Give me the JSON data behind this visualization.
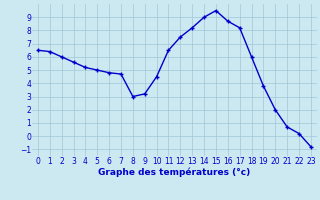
{
  "x": [
    0,
    1,
    2,
    3,
    4,
    5,
    6,
    7,
    8,
    9,
    10,
    11,
    12,
    13,
    14,
    15,
    16,
    17,
    18,
    19,
    20,
    21,
    22,
    23
  ],
  "y": [
    6.5,
    6.4,
    6.0,
    5.6,
    5.2,
    5.0,
    4.8,
    4.7,
    3.0,
    3.2,
    4.5,
    6.5,
    7.5,
    8.2,
    9.0,
    9.5,
    8.7,
    8.2,
    6.0,
    3.8,
    2.0,
    0.7,
    0.2,
    -0.8
  ],
  "line_color": "#0000cc",
  "marker": "+",
  "marker_color": "#0000cc",
  "bg_color": "#cce8f0",
  "grid_color": "#a0c8d8",
  "xlabel": "Graphe des températures (°c)",
  "xlabel_color": "#0000cc",
  "xlabel_fontsize": 6.5,
  "tick_color": "#0000cc",
  "tick_fontsize": 5.5,
  "ylim": [
    -1.5,
    10.0
  ],
  "xlim": [
    -0.5,
    23.5
  ],
  "yticks": [
    -1,
    0,
    1,
    2,
    3,
    4,
    5,
    6,
    7,
    8,
    9
  ],
  "xticks": [
    0,
    1,
    2,
    3,
    4,
    5,
    6,
    7,
    8,
    9,
    10,
    11,
    12,
    13,
    14,
    15,
    16,
    17,
    18,
    19,
    20,
    21,
    22,
    23
  ],
  "linewidth": 1.0,
  "markersize": 3.5
}
